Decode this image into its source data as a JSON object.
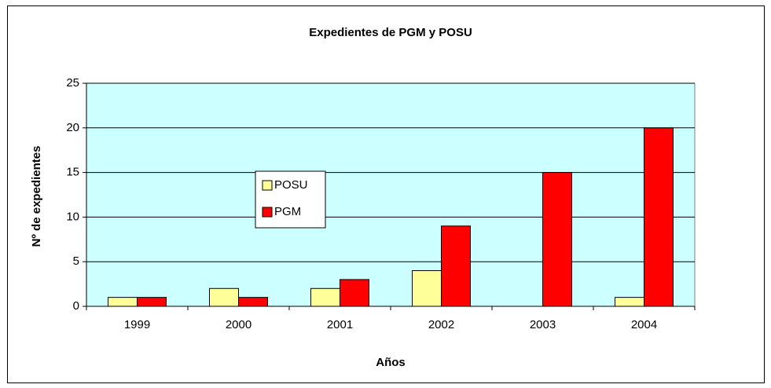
{
  "chart_data": {
    "type": "bar",
    "title": "Expedientes de PGM y POSU",
    "xlabel": "Años",
    "ylabel": "Nº de expedientes",
    "categories": [
      "1999",
      "2000",
      "2001",
      "2002",
      "2003",
      "2004"
    ],
    "series": [
      {
        "name": "POSU",
        "color": "#ffff99",
        "values": [
          1,
          2,
          2,
          4,
          0,
          1
        ]
      },
      {
        "name": "PGM",
        "color": "#ff0000",
        "values": [
          1,
          1,
          3,
          9,
          15,
          20
        ]
      }
    ],
    "ylim": [
      0,
      25
    ],
    "yticks": [
      0,
      5,
      10,
      15,
      20,
      25
    ],
    "grid": true,
    "plot_background": "#ccffff"
  }
}
